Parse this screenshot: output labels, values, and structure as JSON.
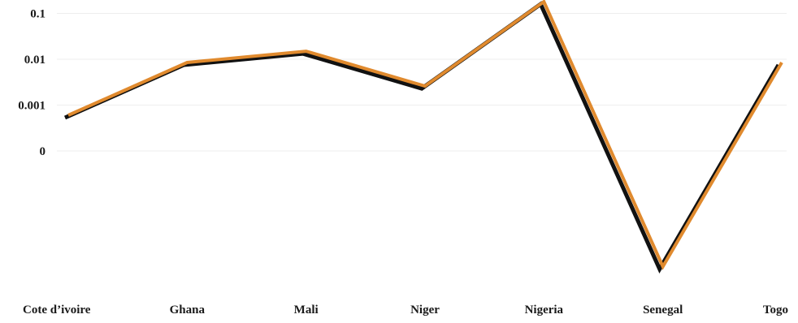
{
  "chart_data": {
    "type": "line",
    "title": "",
    "xlabel": "",
    "ylabel": "",
    "y_scale": "log",
    "grid": true,
    "legend": "none",
    "categories": [
      "Cote d’ivoire",
      "Ghana",
      "Mali",
      "Niger",
      "Nigeria",
      "Senegal",
      "Togo"
    ],
    "y_ticks": [
      {
        "value": 0.1,
        "label": "0.1"
      },
      {
        "value": 0.01,
        "label": "0.01"
      },
      {
        "value": 0.001,
        "label": "0.001"
      },
      {
        "value": 0.0001,
        "label": "0"
      }
    ],
    "series": [
      {
        "values": [
          0.0006,
          0.0085,
          0.015,
          0.0026,
          0.18,
          3e-07,
          0.0085
        ],
        "color": "#e08a2e",
        "shadow_color": "#111111"
      }
    ]
  }
}
